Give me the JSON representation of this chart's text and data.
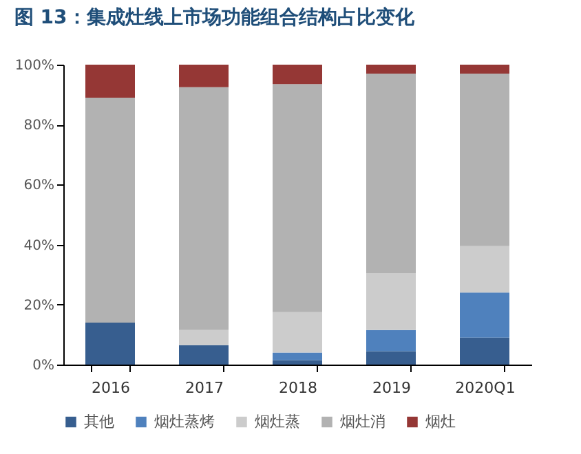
{
  "chart_data": {
    "type": "bar",
    "title": "图 13：集成灶线上市场功能组合结构占比变化",
    "stacked": true,
    "categories": [
      "2016",
      "2017",
      "2018",
      "2019",
      "2020Q1"
    ],
    "series": [
      {
        "name": "其他",
        "color": "#375e8f",
        "values": [
          14,
          6.5,
          1.5,
          4.5,
          9
        ]
      },
      {
        "name": "烟灶蒸烤",
        "color": "#4f81bd",
        "values": [
          0,
          0,
          2.5,
          7,
          15
        ]
      },
      {
        "name": "烟灶蒸",
        "color": "#cccccc",
        "values": [
          0,
          5,
          13.5,
          19,
          15.5
        ]
      },
      {
        "name": "烟灶消",
        "color": "#b2b2b2",
        "values": [
          75,
          81,
          76,
          66.5,
          57.5
        ]
      },
      {
        "name": "烟灶",
        "color": "#953735",
        "values": [
          11,
          7.5,
          6.5,
          3,
          3
        ]
      }
    ],
    "ylim": [
      0,
      100
    ],
    "yticks": [
      {
        "value": 0,
        "label": "0%"
      },
      {
        "value": 20,
        "label": "20%"
      },
      {
        "value": 40,
        "label": "40%"
      },
      {
        "value": 60,
        "label": "60%"
      },
      {
        "value": 80,
        "label": "80%"
      },
      {
        "value": 100,
        "label": "100%"
      }
    ],
    "grid": false,
    "legend": "bottom"
  }
}
